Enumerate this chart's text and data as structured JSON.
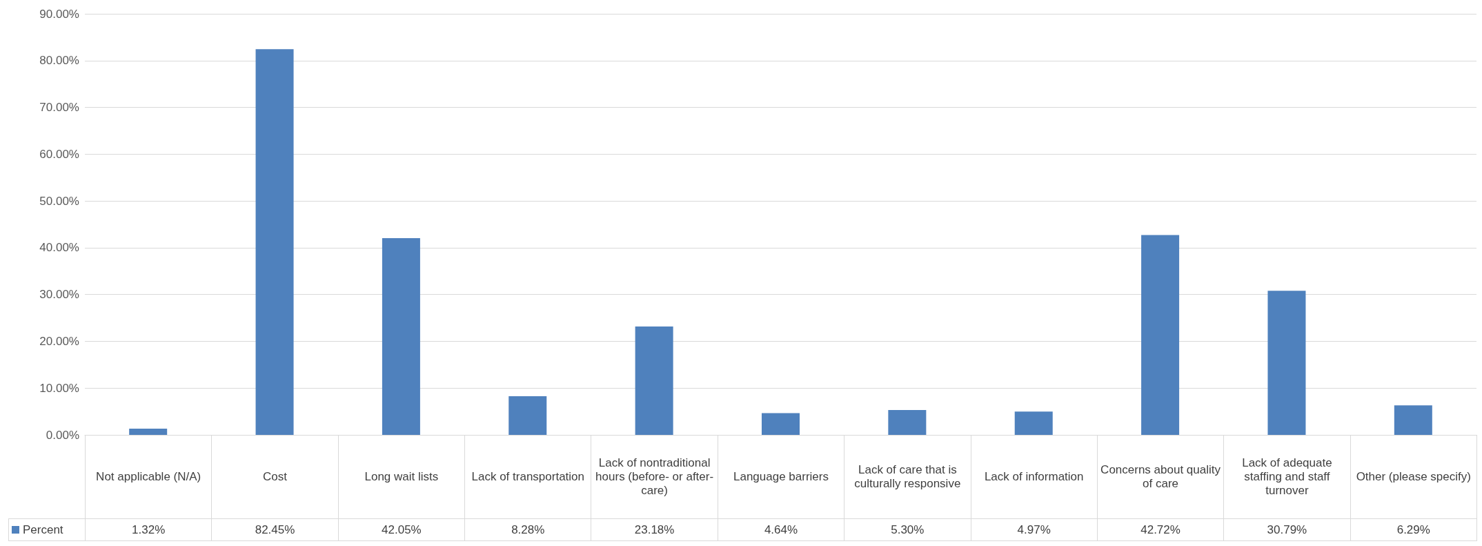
{
  "chart_data": {
    "type": "bar",
    "categories": [
      "Not applicable (N/A)",
      "Cost",
      "Long wait lists",
      "Lack of transportation",
      "Lack of nontraditional hours (before- or after-care)",
      "Language barriers",
      "Lack of care that is culturally responsive",
      "Lack of information",
      "Concerns about quality of care",
      "Lack of adequate staffing and staff turnover",
      "Other (please specify)"
    ],
    "series": [
      {
        "name": "Percent",
        "color": "#4f81bd",
        "values": [
          1.32,
          82.45,
          42.05,
          8.28,
          23.18,
          4.64,
          5.3,
          4.97,
          42.72,
          30.79,
          6.29
        ],
        "value_labels": [
          "1.32%",
          "82.45%",
          "42.05%",
          "8.28%",
          "23.18%",
          "4.64%",
          "5.30%",
          "4.97%",
          "42.72%",
          "30.79%",
          "6.29%"
        ]
      }
    ],
    "ylim": [
      0,
      90
    ],
    "yticks": [
      {
        "value": 0,
        "label": "0.00%"
      },
      {
        "value": 10,
        "label": "10.00%"
      },
      {
        "value": 20,
        "label": "20.00%"
      },
      {
        "value": 30,
        "label": "30.00%"
      },
      {
        "value": 40,
        "label": "40.00%"
      },
      {
        "value": 50,
        "label": "50.00%"
      },
      {
        "value": 60,
        "label": "60.00%"
      },
      {
        "value": 70,
        "label": "70.00%"
      },
      {
        "value": 80,
        "label": "80.00%"
      },
      {
        "value": 90,
        "label": "90.00%"
      }
    ],
    "grid": "y"
  }
}
